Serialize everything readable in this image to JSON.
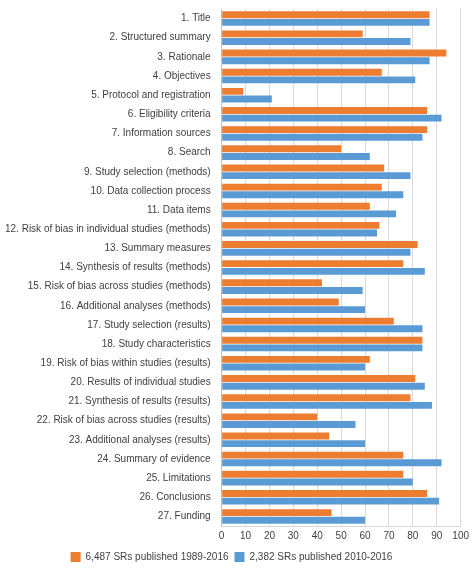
{
  "chart_data": {
    "type": "bar",
    "orientation": "horizontal",
    "categories": [
      "1. Title",
      "2. Structured summary",
      "3. Rationale",
      "4. Objectives",
      "5. Protocol and registration",
      "6. Eligibility criteria",
      "7. Information sources",
      "8. Search",
      "9. Study selection (methods)",
      "10. Data collection process",
      "11. Data items",
      "12. Risk of bias in individual studies (methods)",
      "13. Summary measures",
      "14. Synthesis of results (methods)",
      "15. Risk of bias across studies (methods)",
      "16. Additional analyses (methods)",
      "17. Study selection (results)",
      "18. Study characteristics",
      "19. Risk of bias within studies (results)",
      "20. Results of individual studies",
      "21. Synthesis of results (results)",
      "22. Risk of bias across studies (results)",
      "23. Additional analyses (results)",
      "24. Summary of evidence",
      "25. Limitations",
      "26. Conclusions",
      "27. Funding"
    ],
    "series": [
      {
        "name": "6,487 SRs published 1989-2016",
        "color": "#ED7D31",
        "values": [
          87,
          59,
          94,
          67,
          9,
          86,
          86,
          50,
          68,
          67,
          62,
          66,
          82,
          76,
          42,
          49,
          72,
          84,
          62,
          81,
          79,
          40,
          45,
          76,
          76,
          86,
          46
        ]
      },
      {
        "name": "2,382 SRs published 2010-2016",
        "color": "#5B9BD5",
        "values": [
          87,
          79,
          87,
          81,
          21,
          92,
          84,
          62,
          79,
          76,
          73,
          65,
          79,
          85,
          59,
          60,
          84,
          84,
          60,
          85,
          88,
          56,
          60,
          92,
          80,
          91,
          60
        ]
      }
    ],
    "xlim": [
      0,
      100
    ],
    "xticks": [
      0,
      10,
      20,
      30,
      40,
      50,
      60,
      70,
      80,
      90,
      100
    ],
    "grid": true,
    "legend": "bottom"
  }
}
